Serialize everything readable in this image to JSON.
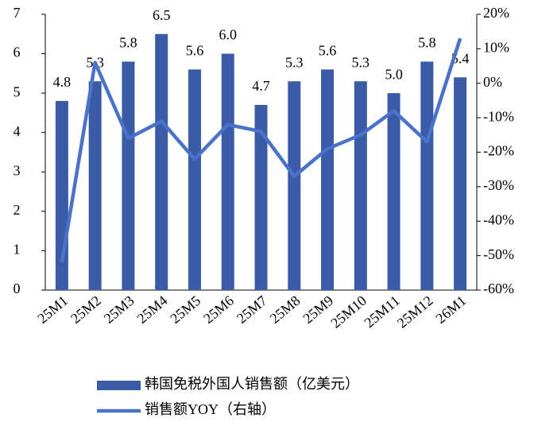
{
  "chart_data": {
    "type": "bar",
    "categories": [
      "25M1",
      "25M2",
      "25M3",
      "25M4",
      "25M5",
      "25M6",
      "25M7",
      "25M8",
      "25M9",
      "25M10",
      "25M11",
      "25M12",
      "26M1"
    ],
    "series": [
      {
        "name": "韩国免税外国人销售额（亿美元）",
        "type": "bar",
        "color": "#3a5ca8",
        "values": [
          4.8,
          5.3,
          5.8,
          6.5,
          5.6,
          6.0,
          4.7,
          5.3,
          5.6,
          5.3,
          5.0,
          5.8,
          5.4
        ],
        "value_labels": [
          "4.8",
          "5.3",
          "5.8",
          "6.5",
          "5.6",
          "6.0",
          "4.7",
          "5.3",
          "5.6",
          "5.3",
          "5.0",
          "5.8",
          "5.4"
        ]
      },
      {
        "name": "销售额YOY（右轴）",
        "type": "line",
        "color": "#4a72c9",
        "axis": "y2",
        "values": [
          -52,
          6,
          -16,
          -11,
          -22,
          -12,
          -14,
          -27,
          -19,
          -15,
          -8,
          -17,
          13
        ]
      }
    ],
    "ylim": [
      0,
      7
    ],
    "yticks": [
      0,
      1,
      2,
      3,
      4,
      5,
      6,
      7
    ],
    "y2lim": [
      -60,
      20
    ],
    "y2ticks": [
      {
        "value": -60,
        "label": "-60%"
      },
      {
        "value": -50,
        "label": "-50%"
      },
      {
        "value": -40,
        "label": "-40%"
      },
      {
        "value": -30,
        "label": "-30%"
      },
      {
        "value": -20,
        "label": "-20%"
      },
      {
        "value": -10,
        "label": "-10%"
      },
      {
        "value": 0,
        "label": "0%"
      },
      {
        "value": 10,
        "label": "10%"
      },
      {
        "value": 20,
        "label": "20%"
      }
    ],
    "grid": false,
    "legend": "bottom"
  }
}
